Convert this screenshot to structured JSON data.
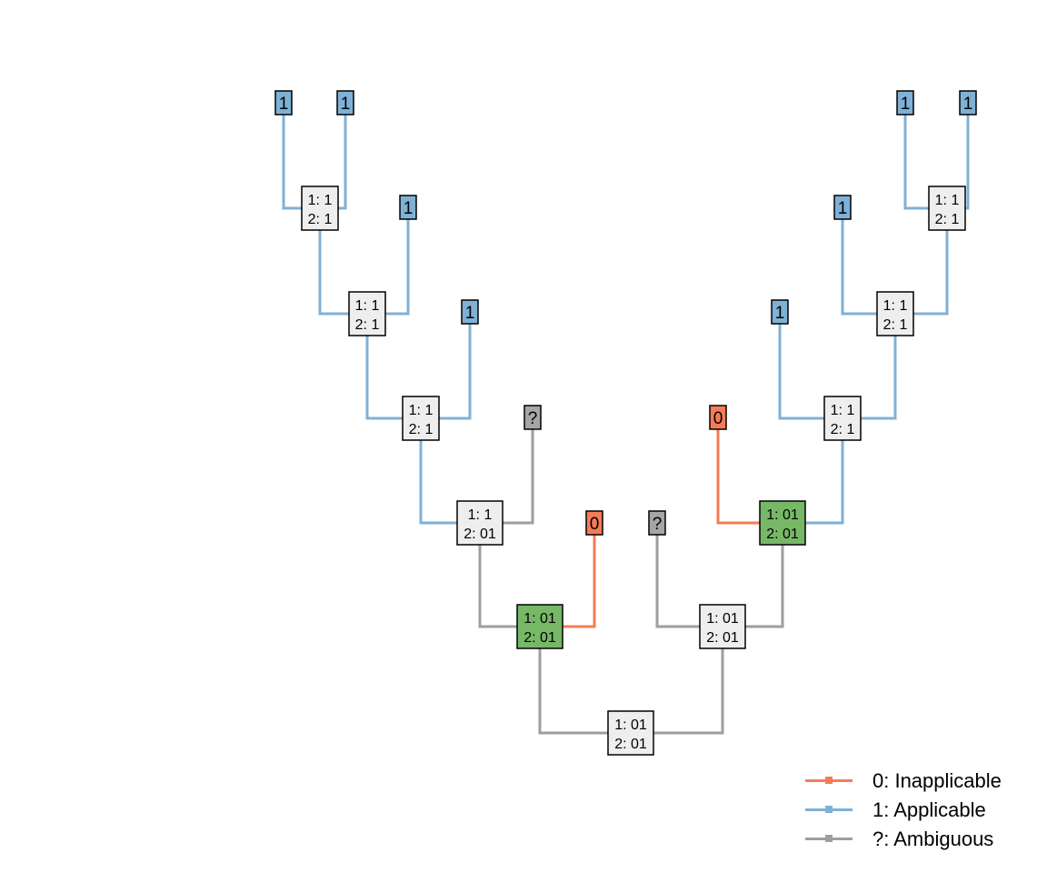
{
  "colors": {
    "inapplicable": "#f47c56",
    "applicable": "#7fb1d6",
    "ambiguous": "#9e9e9e",
    "both_states_node": "#76b866",
    "internal_node": "#eeeeee",
    "ambiguous_tip": "#a6a6a6"
  },
  "legend": [
    {
      "label": "0: Inapplicable",
      "color_key": "inapplicable"
    },
    {
      "label": "1: Applicable",
      "color_key": "applicable"
    },
    {
      "label": "?: Ambiguous",
      "color_key": "ambiguous"
    }
  ],
  "tips": [
    {
      "id": "t1",
      "label": "1",
      "state": "applicable"
    },
    {
      "id": "t2",
      "label": "1",
      "state": "applicable"
    },
    {
      "id": "t3",
      "label": "1",
      "state": "applicable"
    },
    {
      "id": "t4",
      "label": "1",
      "state": "applicable"
    },
    {
      "id": "t5",
      "label": "?",
      "state": "ambiguous"
    },
    {
      "id": "t6",
      "label": "0",
      "state": "inapplicable"
    },
    {
      "id": "t7",
      "label": "?",
      "state": "ambiguous"
    },
    {
      "id": "t8",
      "label": "0",
      "state": "inapplicable"
    },
    {
      "id": "t9",
      "label": "1",
      "state": "applicable"
    },
    {
      "id": "t10",
      "label": "1",
      "state": "applicable"
    },
    {
      "id": "t11",
      "label": "1",
      "state": "applicable"
    },
    {
      "id": "t12",
      "label": "1",
      "state": "applicable"
    }
  ],
  "internal_nodes": [
    {
      "id": "n1",
      "line1": "1: 1",
      "line2": "2: 1",
      "fill": "internal_node"
    },
    {
      "id": "n2",
      "line1": "1: 1",
      "line2": "2: 1",
      "fill": "internal_node"
    },
    {
      "id": "n3",
      "line1": "1: 1",
      "line2": "2: 1",
      "fill": "internal_node"
    },
    {
      "id": "n4",
      "line1": "1: 1",
      "line2": "2: 01",
      "fill": "internal_node"
    },
    {
      "id": "n5",
      "line1": "1: 01",
      "line2": "2: 01",
      "fill": "both_states_node"
    },
    {
      "id": "n6",
      "line1": "1: 01",
      "line2": "2: 01",
      "fill": "internal_node"
    },
    {
      "id": "n7",
      "line1": "1: 01",
      "line2": "2: 01",
      "fill": "internal_node"
    },
    {
      "id": "n8",
      "line1": "1: 01",
      "line2": "2: 01",
      "fill": "both_states_node"
    },
    {
      "id": "n9",
      "line1": "1: 1",
      "line2": "2: 1",
      "fill": "internal_node"
    },
    {
      "id": "n10",
      "line1": "1: 1",
      "line2": "2: 1",
      "fill": "internal_node"
    },
    {
      "id": "n11",
      "line1": "1: 1",
      "line2": "2: 1",
      "fill": "internal_node"
    }
  ],
  "edges": [
    {
      "from": "n1",
      "to": "t1",
      "state": "applicable"
    },
    {
      "from": "n1",
      "to": "t2",
      "state": "applicable"
    },
    {
      "from": "n2",
      "to": "n1",
      "state": "applicable"
    },
    {
      "from": "n2",
      "to": "t3",
      "state": "applicable"
    },
    {
      "from": "n3",
      "to": "n2",
      "state": "applicable"
    },
    {
      "from": "n3",
      "to": "t4",
      "state": "applicable"
    },
    {
      "from": "n4",
      "to": "n3",
      "state": "applicable"
    },
    {
      "from": "n4",
      "to": "t5",
      "state": "ambiguous"
    },
    {
      "from": "n5",
      "to": "n4",
      "state": "ambiguous"
    },
    {
      "from": "n5",
      "to": "t6",
      "state": "inapplicable"
    },
    {
      "from": "n7",
      "to": "n5",
      "state": "ambiguous"
    },
    {
      "from": "n7",
      "to": "n6",
      "state": "ambiguous"
    },
    {
      "from": "n6",
      "to": "t7",
      "state": "ambiguous"
    },
    {
      "from": "n6",
      "to": "n8",
      "state": "ambiguous"
    },
    {
      "from": "n8",
      "to": "t8",
      "state": "inapplicable"
    },
    {
      "from": "n8",
      "to": "n9",
      "state": "applicable"
    },
    {
      "from": "n9",
      "to": "t9",
      "state": "applicable"
    },
    {
      "from": "n9",
      "to": "n10",
      "state": "applicable"
    },
    {
      "from": "n10",
      "to": "t10",
      "state": "applicable"
    },
    {
      "from": "n10",
      "to": "n11",
      "state": "applicable"
    },
    {
      "from": "n11",
      "to": "t11",
      "state": "applicable"
    },
    {
      "from": "n11",
      "to": "t12",
      "state": "applicable"
    }
  ]
}
